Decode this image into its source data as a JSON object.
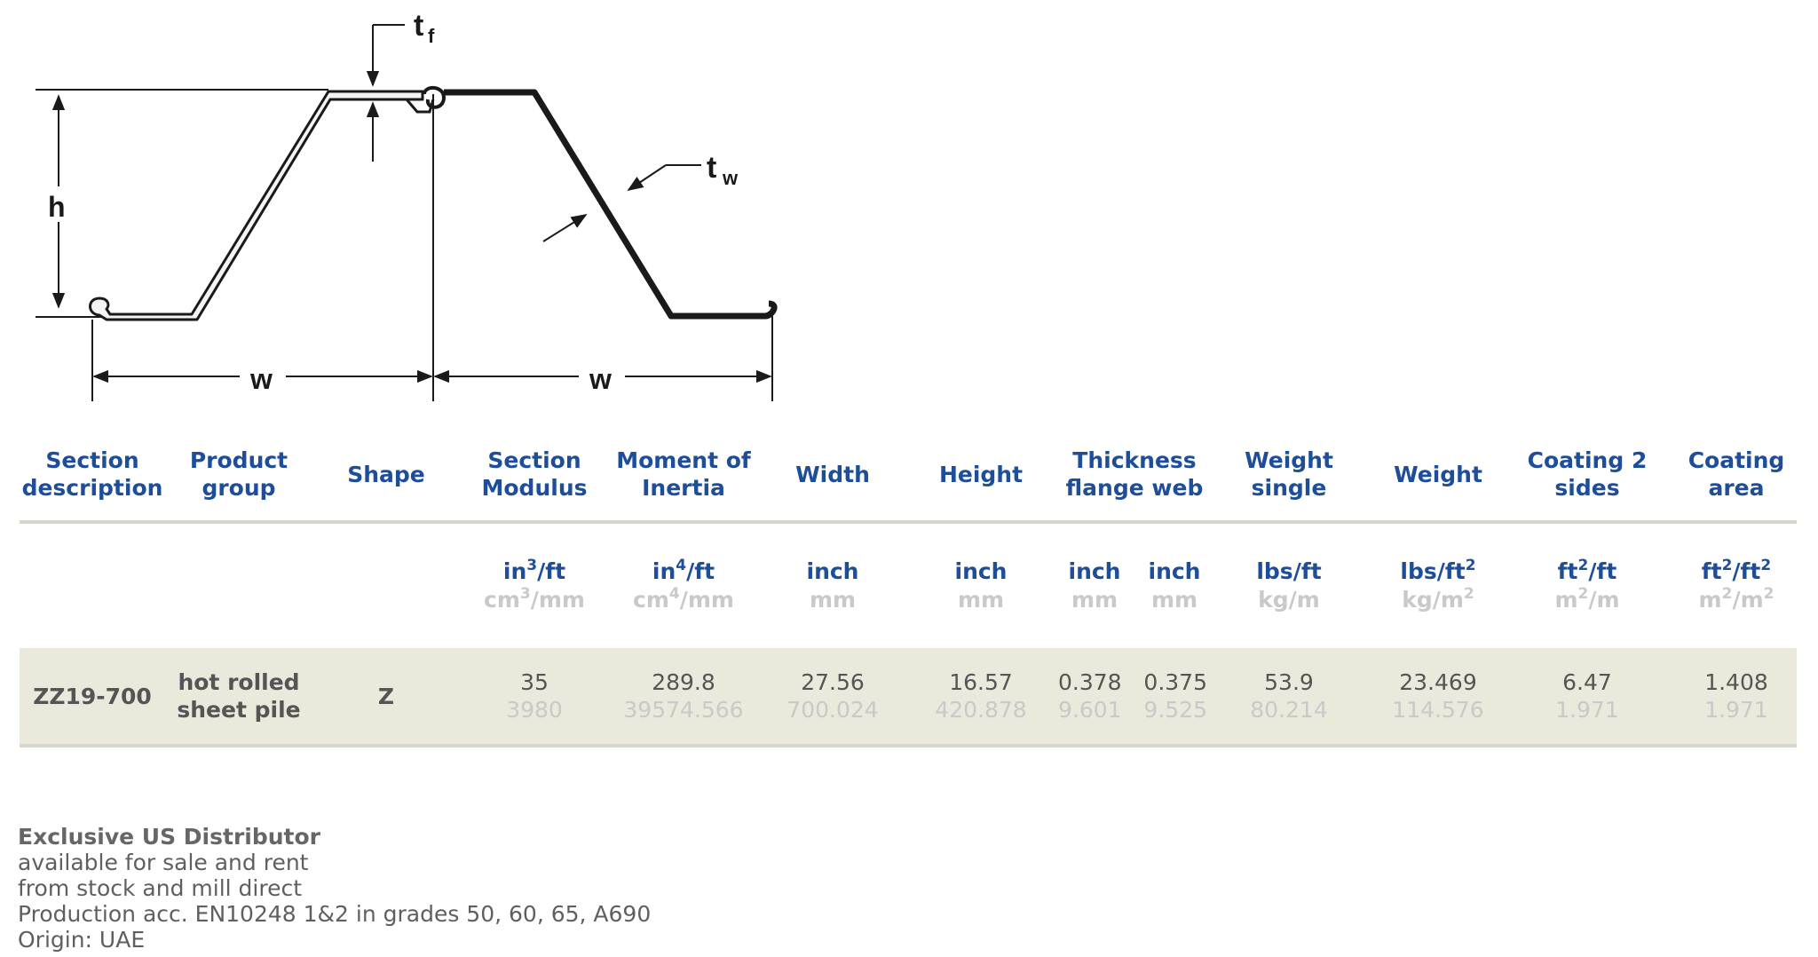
{
  "diagram": {
    "labels": {
      "tf": "t",
      "tf_sub": "f",
      "tw": "t",
      "tw_sub": "w",
      "h": "h",
      "w1": "w",
      "w2": "w"
    }
  },
  "table": {
    "headers": [
      "Section\ndescription",
      "Product\ngroup",
      "Shape",
      "Section\nModulus",
      "Moment of\nInertia",
      "Width",
      "Height",
      "Thickness\nflange web",
      "Weight\nsingle",
      "Weight",
      "Coating 2\nsides",
      "Coating\narea"
    ],
    "units": {
      "modulus": {
        "imperial": "in",
        "imperial_exp": "3",
        "imperial_tail": "/ft",
        "metric": "cm",
        "metric_exp": "3",
        "metric_tail": "/mm"
      },
      "inertia": {
        "imperial": "in",
        "imperial_exp": "4",
        "imperial_tail": "/ft",
        "metric": "cm",
        "metric_exp": "4",
        "metric_tail": "/mm"
      },
      "width": {
        "imperial": "inch",
        "metric": "mm"
      },
      "height": {
        "imperial": "inch",
        "metric": "mm"
      },
      "flange": {
        "imperial": "inch",
        "metric": "mm"
      },
      "web": {
        "imperial": "inch",
        "metric": "mm"
      },
      "wsingle": {
        "imperial": "lbs/ft",
        "metric": "kg/m"
      },
      "weight": {
        "imperial": "lbs/ft",
        "imperial_exp": "2",
        "metric": "kg/m",
        "metric_exp": "2"
      },
      "coat2": {
        "imperial": "ft",
        "imperial_exp": "2",
        "imperial_tail": "/ft",
        "metric": "m",
        "metric_exp": "2",
        "metric_tail": "/m"
      },
      "coatarea": {
        "imperial": "ft",
        "imperial_exp": "2",
        "imperial_tail": "/ft",
        "imperial_exp2": "2",
        "metric": "m",
        "metric_exp": "2",
        "metric_tail": "/m",
        "metric_exp2": "2"
      }
    },
    "row": {
      "section": "ZZ19-700",
      "product_group": "hot rolled\nsheet pile",
      "shape": "Z",
      "modulus": {
        "imperial": "35",
        "metric": "3980"
      },
      "inertia": {
        "imperial": "289.8",
        "metric": "39574.566"
      },
      "width": {
        "imperial": "27.56",
        "metric": "700.024"
      },
      "height": {
        "imperial": "16.57",
        "metric": "420.878"
      },
      "flange": {
        "imperial": "0.378",
        "metric": "9.601"
      },
      "web": {
        "imperial": "0.375",
        "metric": "9.525"
      },
      "wsingle": {
        "imperial": "53.9",
        "metric": "80.214"
      },
      "weight": {
        "imperial": "23.469",
        "metric": "114.576"
      },
      "coat2": {
        "imperial": "6.47",
        "metric": "1.971"
      },
      "coatarea": {
        "imperial": "1.408",
        "metric": "1.971"
      }
    }
  },
  "footer": {
    "title": "Exclusive US Distributor",
    "lines": [
      "available for sale and rent",
      "from stock and mill direct",
      "Production acc. EN10248 1&2 in grades 50, 60, 65, A690",
      "Origin: UAE"
    ]
  }
}
